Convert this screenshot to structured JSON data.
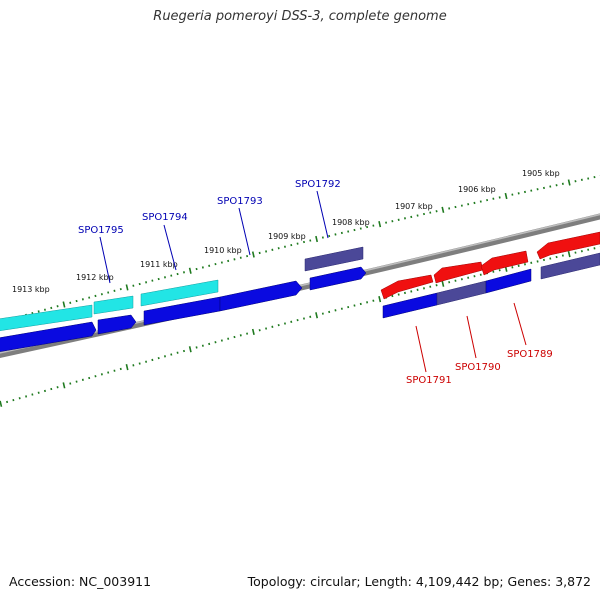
{
  "title": "Ruegeria pomeroyi DSS-3, complete genome",
  "footer": {
    "accession": "Accession: NC_003911",
    "stats": "Topology: circular; Length: 4,109,442 bp; Genes: 3,872"
  },
  "colors": {
    "backbone": "#8a8a8a",
    "tick": "#1f7a1f",
    "label_top": "#0000b3",
    "label_bottom": "#cc0000",
    "gene_blue": "#0a0ae0",
    "gene_cyan": "#22e5e5",
    "gene_slate": "#4b4898",
    "gene_red": "#f01010"
  },
  "ruler_labels": [
    "1913 kbp",
    "1912 kbp",
    "1911 kbp",
    "1910 kbp",
    "1909 kbp",
    "1908 kbp",
    "1907 kbp",
    "1906 kbp",
    "1905 kbp"
  ],
  "gene_labels_top": [
    "SPO1795",
    "SPO1794",
    "SPO1793",
    "SPO1792"
  ],
  "gene_labels_bottom": [
    "SPO1791",
    "SPO1790",
    "SPO1789"
  ]
}
